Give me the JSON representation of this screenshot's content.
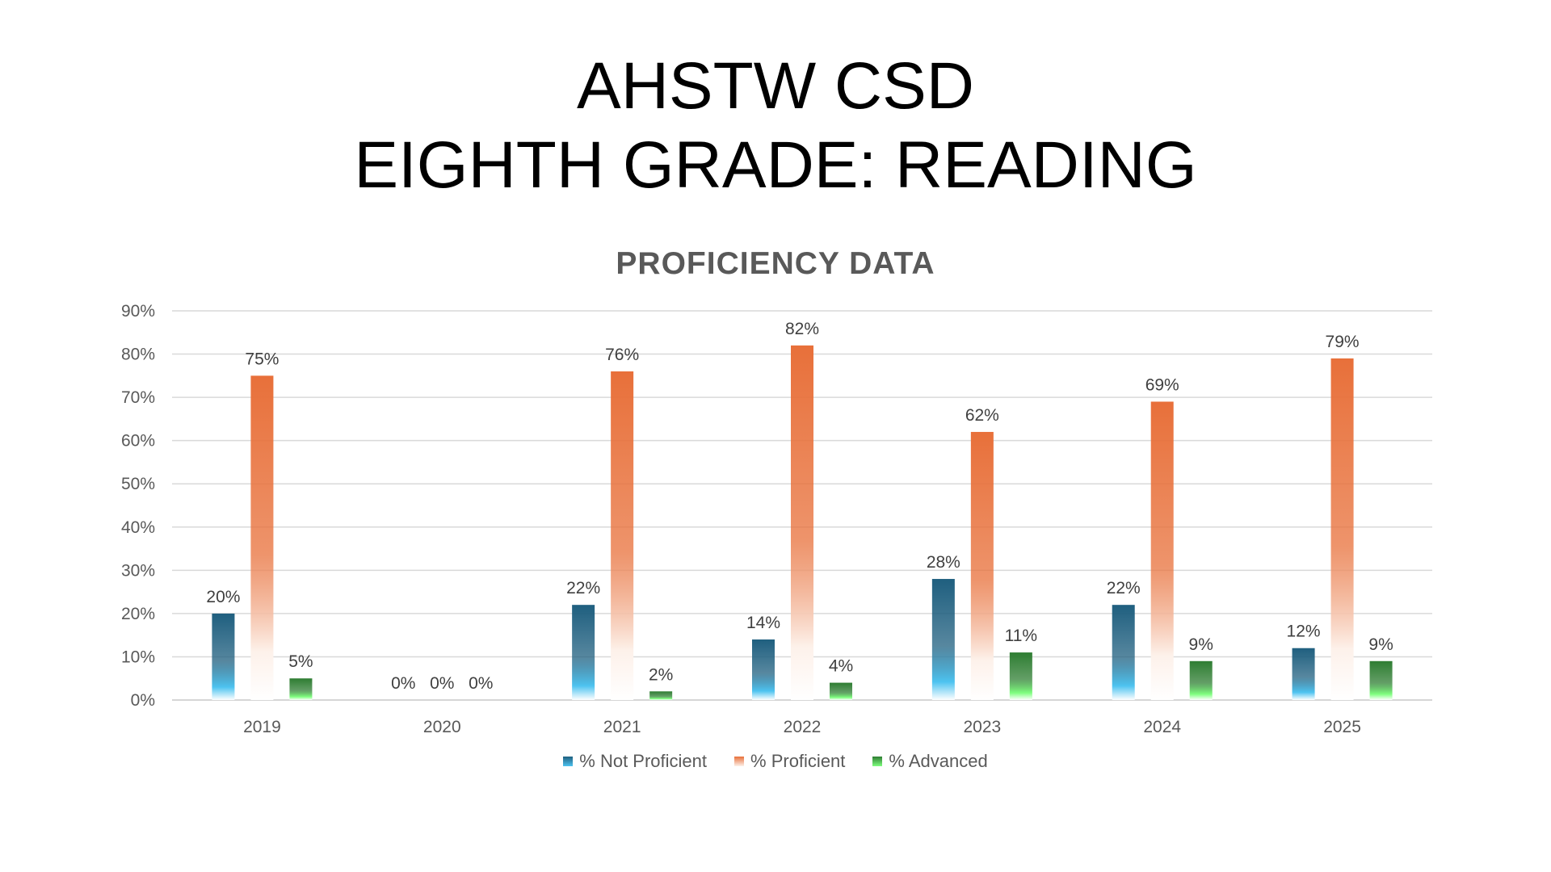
{
  "slide": {
    "title_line1": "AHSTW CSD",
    "title_line2": "EIGHTH GRADE: READING"
  },
  "chart_data": {
    "type": "bar",
    "title": "PROFICIENCY DATA",
    "categories": [
      "2019",
      "2020",
      "2021",
      "2022",
      "2023",
      "2024",
      "2025"
    ],
    "series": [
      {
        "name": "% Not Proficient",
        "values": [
          20,
          0,
          22,
          14,
          28,
          22,
          12
        ],
        "color": "#1f5f7f",
        "color_light": "#4dc3f0"
      },
      {
        "name": "% Proficient",
        "values": [
          75,
          0,
          76,
          82,
          62,
          69,
          79
        ],
        "color": "#e8703a",
        "color_light": "#fdf1ea"
      },
      {
        "name": "% Advanced",
        "values": [
          5,
          0,
          2,
          4,
          11,
          9,
          9
        ],
        "color": "#2e7d32",
        "color_light": "#7fff7f"
      }
    ],
    "data_labels": [
      [
        "20%",
        "0%",
        "22%",
        "14%",
        "28%",
        "22%",
        "12%"
      ],
      [
        "75%",
        "0%",
        "76%",
        "82%",
        "62%",
        "69%",
        "79%"
      ],
      [
        "5%",
        "0%",
        "2%",
        "4%",
        "11%",
        "9%",
        "9%"
      ]
    ],
    "y_ticks": [
      "0%",
      "10%",
      "20%",
      "30%",
      "40%",
      "50%",
      "60%",
      "70%",
      "80%",
      "90%"
    ],
    "ylim": [
      0,
      90
    ],
    "y_tick_step": 10,
    "grid": true,
    "legend_position": "bottom"
  }
}
